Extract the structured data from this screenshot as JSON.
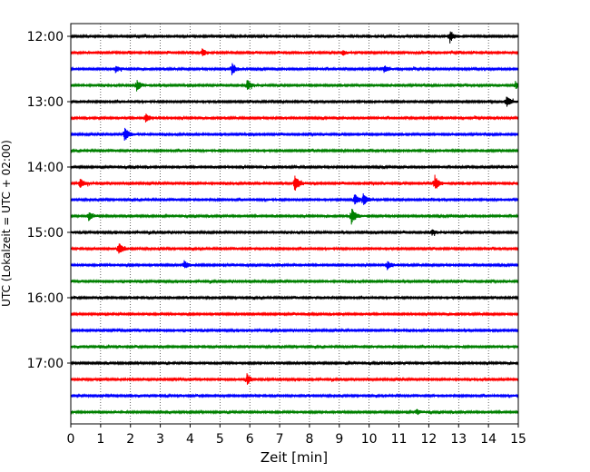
{
  "chart_data": {
    "type": "line",
    "title": "",
    "xlabel": "Zeit  [min]",
    "ylabel": "UTC (Lokalzeit = UTC + 02:00)",
    "xlim": [
      0,
      15
    ],
    "x_ticks": [
      0,
      1,
      2,
      3,
      4,
      5,
      6,
      7,
      8,
      9,
      10,
      11,
      12,
      13,
      14,
      15
    ],
    "y_tick_labels": [
      "12:00",
      "13:00",
      "14:00",
      "15:00",
      "16:00",
      "17:00"
    ],
    "x_grid": "dotted vertical lines at each minute",
    "trace_interval_minutes": 15,
    "start_time": "12:00",
    "trace_count": 24,
    "colors": [
      "#000000",
      "#ff0000",
      "#0000ff",
      "#008000"
    ],
    "events": [
      {
        "trace": 0,
        "minute": 12.7,
        "amplitude": 0.8
      },
      {
        "trace": 1,
        "minute": 4.4,
        "amplitude": 0.55
      },
      {
        "trace": 1,
        "minute": 9.1,
        "amplitude": 0.35
      },
      {
        "trace": 2,
        "minute": 1.5,
        "amplitude": 0.45
      },
      {
        "trace": 2,
        "minute": 5.4,
        "amplitude": 0.75
      },
      {
        "trace": 2,
        "minute": 10.5,
        "amplitude": 0.5
      },
      {
        "trace": 3,
        "minute": 2.2,
        "amplitude": 0.75
      },
      {
        "trace": 3,
        "minute": 5.9,
        "amplitude": 0.75
      },
      {
        "trace": 3,
        "minute": 14.9,
        "amplitude": 0.45
      },
      {
        "trace": 4,
        "minute": 14.6,
        "amplitude": 0.7
      },
      {
        "trace": 5,
        "minute": 2.5,
        "amplitude": 0.7
      },
      {
        "trace": 6,
        "minute": 1.8,
        "amplitude": 1.1
      },
      {
        "trace": 9,
        "minute": 0.3,
        "amplitude": 0.7
      },
      {
        "trace": 9,
        "minute": 7.5,
        "amplitude": 1.2
      },
      {
        "trace": 9,
        "minute": 12.2,
        "amplitude": 1.0
      },
      {
        "trace": 10,
        "minute": 9.5,
        "amplitude": 0.85
      },
      {
        "trace": 10,
        "minute": 9.8,
        "amplitude": 0.85
      },
      {
        "trace": 11,
        "minute": 0.6,
        "amplitude": 0.55
      },
      {
        "trace": 11,
        "minute": 9.4,
        "amplitude": 1.1
      },
      {
        "trace": 12,
        "minute": 12.1,
        "amplitude": 0.4
      },
      {
        "trace": 13,
        "minute": 1.6,
        "amplitude": 0.9
      },
      {
        "trace": 14,
        "minute": 3.8,
        "amplitude": 0.55
      },
      {
        "trace": 14,
        "minute": 10.6,
        "amplitude": 0.55
      },
      {
        "trace": 21,
        "minute": 5.9,
        "amplitude": 0.7
      },
      {
        "trace": 23,
        "minute": 11.6,
        "amplitude": 0.4
      }
    ]
  }
}
